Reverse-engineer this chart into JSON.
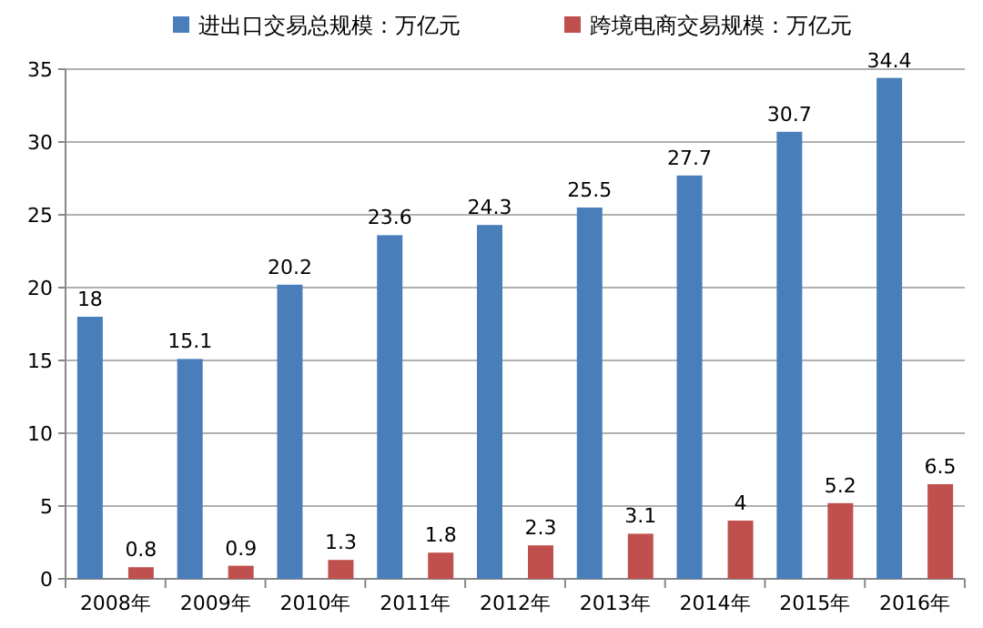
{
  "chart_data": {
    "type": "bar",
    "categories": [
      "2008年",
      "2009年",
      "2010年",
      "2011年",
      "2012年",
      "2013年",
      "2014年",
      "2015年",
      "2016年"
    ],
    "series": [
      {
        "name": "进出口交易总规模：万亿元",
        "color": "#4a7ebb",
        "values": [
          18,
          15.1,
          20.2,
          23.6,
          24.3,
          25.5,
          27.7,
          30.7,
          34.4
        ]
      },
      {
        "name": "跨境电商交易规模：万亿元",
        "color": "#c0504d",
        "values": [
          0.8,
          0.9,
          1.3,
          1.8,
          2.3,
          3.1,
          4,
          5.2,
          6.5
        ]
      }
    ],
    "ylim": [
      0,
      35
    ],
    "yticks": [
      0,
      5,
      10,
      15,
      20,
      25,
      30,
      35
    ],
    "grid": "y",
    "legend": "top",
    "data_labels": true
  }
}
